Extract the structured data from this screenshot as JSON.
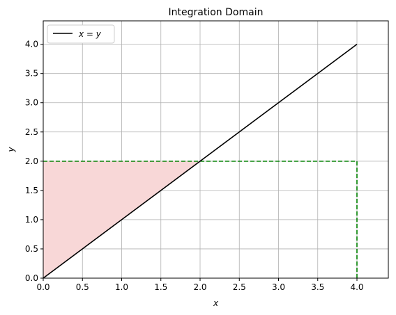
{
  "chart_data": {
    "type": "line",
    "title": "Integration Domain",
    "xlabel": "x",
    "ylabel": "y",
    "xlim": [
      0,
      4.4
    ],
    "ylim": [
      0,
      4.4
    ],
    "xticks": [
      0.0,
      0.5,
      1.0,
      1.5,
      2.0,
      2.5,
      3.0,
      3.5,
      4.0
    ],
    "yticks": [
      0.0,
      0.5,
      1.0,
      1.5,
      2.0,
      2.5,
      3.0,
      3.5,
      4.0
    ],
    "xtick_labels": [
      "0.0",
      "0.5",
      "1.0",
      "1.5",
      "2.0",
      "2.5",
      "3.0",
      "3.5",
      "4.0"
    ],
    "ytick_labels": [
      "0.0",
      "0.5",
      "1.0",
      "1.5",
      "2.0",
      "2.5",
      "3.0",
      "3.5",
      "4.0"
    ],
    "grid": true,
    "legend": {
      "location": "upper left",
      "entries": [
        "x = y"
      ]
    },
    "series": [
      {
        "name": "x = y",
        "x": [
          0,
          4
        ],
        "y": [
          0,
          4
        ],
        "color": "#000000",
        "style": "solid"
      }
    ],
    "boundary_lines": [
      {
        "x": [
          0,
          4
        ],
        "y": [
          2,
          2
        ],
        "color": "#008000",
        "style": "dashed"
      },
      {
        "x": [
          4,
          4
        ],
        "y": [
          0,
          2
        ],
        "color": "#008000",
        "style": "dashed"
      }
    ],
    "shaded_region": {
      "polygon_x": [
        0,
        0,
        2
      ],
      "polygon_y": [
        0,
        2,
        2
      ],
      "color": "#f8d7d7"
    }
  }
}
